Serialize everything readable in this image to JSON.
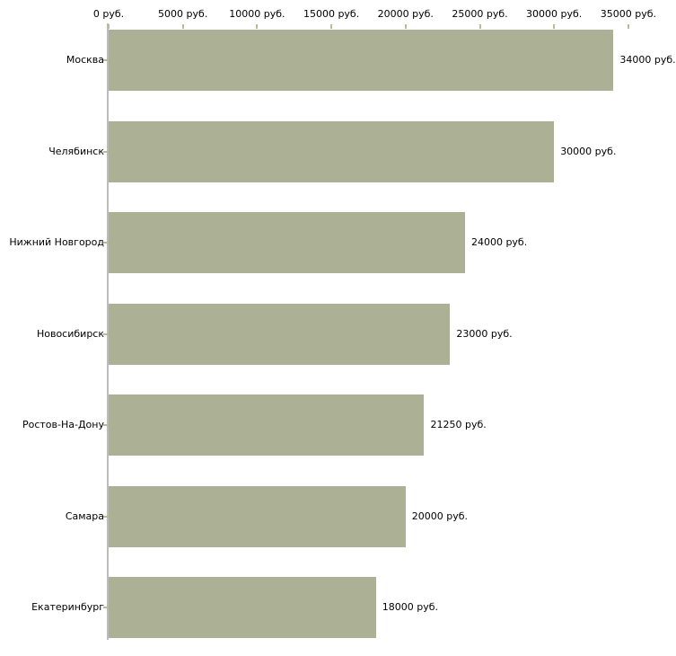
{
  "chart_data": {
    "type": "bar",
    "orientation": "horizontal",
    "title": "",
    "categories": [
      "Москва",
      "Челябинск",
      "Нижний Новгород",
      "Новосибирск",
      "Ростов-На-Дону",
      "Самара",
      "Екатеринбург"
    ],
    "values": [
      34000,
      30000,
      24000,
      23000,
      21250,
      20000,
      18000
    ],
    "bar_labels": [
      "34000 руб.",
      "30000 руб.",
      "24000 руб.",
      "23000 руб.",
      "21250 руб.",
      "20000 руб.",
      "18000 руб."
    ],
    "x_axis": {
      "position": "top",
      "unit": "руб.",
      "tick_values": [
        0,
        5000,
        10000,
        15000,
        20000,
        25000,
        30000,
        35000
      ],
      "tick_labels": [
        "0 руб.",
        "5000 руб.",
        "10000 руб.",
        "15000 руб.",
        "20000 руб.",
        "25000 руб.",
        "30000 руб.",
        "35000 руб."
      ],
      "xlim": [
        0,
        36800
      ]
    },
    "ylabel": "",
    "xlabel": "",
    "grid": false,
    "legend": null,
    "colors": {
      "bar": "#acb195",
      "axis_spine": "#bcbcbc",
      "tick_mark": "#b9bc92",
      "text": "#000000",
      "background": "#ffffff"
    }
  }
}
